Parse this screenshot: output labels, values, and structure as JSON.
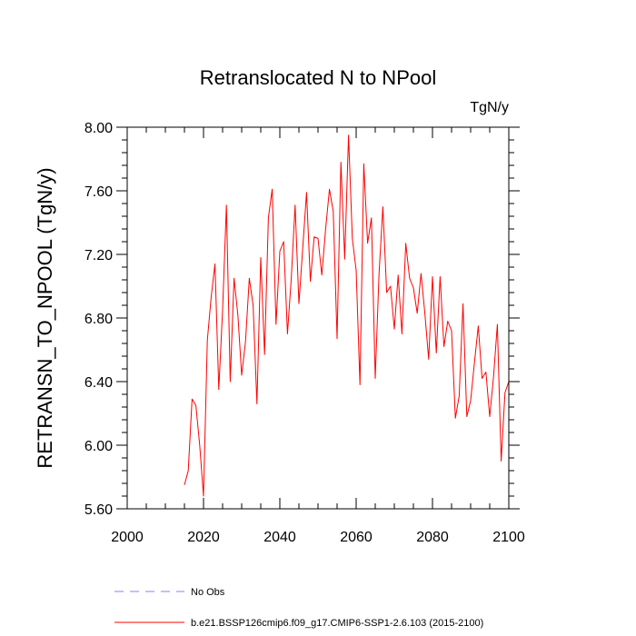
{
  "chart_data": {
    "type": "line",
    "title": "Retranslocated N to NPool",
    "units": "TgN/y",
    "xlabel": "",
    "ylabel": "RETRANSN_TO_NPOOL  (TgN/y)",
    "xlim": [
      2000,
      2100
    ],
    "ylim": [
      5.6,
      8.0
    ],
    "x_ticks": [
      2000,
      2020,
      2040,
      2060,
      2080,
      2100
    ],
    "x_tick_labels": [
      "2000",
      "2020",
      "2040",
      "2060",
      "2080",
      "2100"
    ],
    "y_ticks": [
      5.6,
      6.0,
      6.4,
      6.8,
      7.2,
      7.6,
      8.0
    ],
    "y_tick_labels": [
      "5.60",
      "6.00",
      "6.40",
      "6.80",
      "7.20",
      "7.60",
      "8.00"
    ],
    "series": [
      {
        "name": "b.e21.BSSP126cmip6.f09_g17.CMIP6-SSP1-2.6.103 (2015-2100)",
        "color": "#ff0000",
        "style": "solid",
        "x": [
          2015,
          2016,
          2017,
          2018,
          2019,
          2020,
          2021,
          2022,
          2023,
          2024,
          2025,
          2026,
          2027,
          2028,
          2029,
          2030,
          2031,
          2032,
          2033,
          2034,
          2035,
          2036,
          2037,
          2038,
          2039,
          2040,
          2041,
          2042,
          2043,
          2044,
          2045,
          2046,
          2047,
          2048,
          2049,
          2050,
          2051,
          2052,
          2053,
          2054,
          2055,
          2056,
          2057,
          2058,
          2059,
          2060,
          2061,
          2062,
          2063,
          2064,
          2065,
          2066,
          2067,
          2068,
          2069,
          2070,
          2071,
          2072,
          2073,
          2074,
          2075,
          2076,
          2077,
          2078,
          2079,
          2080,
          2081,
          2082,
          2083,
          2084,
          2085,
          2086,
          2087,
          2088,
          2089,
          2090,
          2091,
          2092,
          2093,
          2094,
          2095,
          2096,
          2097,
          2098,
          2099,
          2100
        ],
        "values": [
          5.75,
          5.84,
          6.29,
          6.25,
          6.0,
          5.68,
          6.66,
          6.93,
          7.14,
          6.35,
          6.85,
          7.51,
          6.4,
          7.05,
          6.82,
          6.44,
          6.65,
          7.05,
          6.88,
          6.26,
          7.18,
          6.57,
          7.43,
          7.61,
          6.76,
          7.22,
          7.28,
          6.7,
          7.05,
          7.51,
          6.89,
          7.24,
          7.59,
          7.03,
          7.31,
          7.3,
          7.07,
          7.36,
          7.61,
          7.47,
          6.67,
          7.78,
          7.17,
          7.95,
          7.3,
          7.1,
          6.38,
          7.77,
          7.27,
          7.43,
          6.42,
          7.08,
          7.5,
          6.96,
          7.0,
          6.73,
          7.07,
          6.7,
          7.27,
          7.05,
          6.99,
          6.83,
          7.08,
          6.83,
          6.54,
          7.06,
          6.58,
          7.06,
          6.62,
          6.78,
          6.72,
          6.17,
          6.31,
          6.89,
          6.18,
          6.28,
          6.52,
          6.75,
          6.42,
          6.46,
          6.18,
          6.43,
          6.76,
          5.9,
          6.33,
          6.4
        ]
      },
      {
        "name": "No Obs",
        "color": "#8080ff",
        "style": "dashed",
        "x": [],
        "values": []
      }
    ],
    "legend": [
      "No Obs",
      "b.e21.BSSP126cmip6.f09_g17.CMIP6-SSP1-2.6.103 (2015-2100)"
    ],
    "legend_position": "bottom"
  }
}
